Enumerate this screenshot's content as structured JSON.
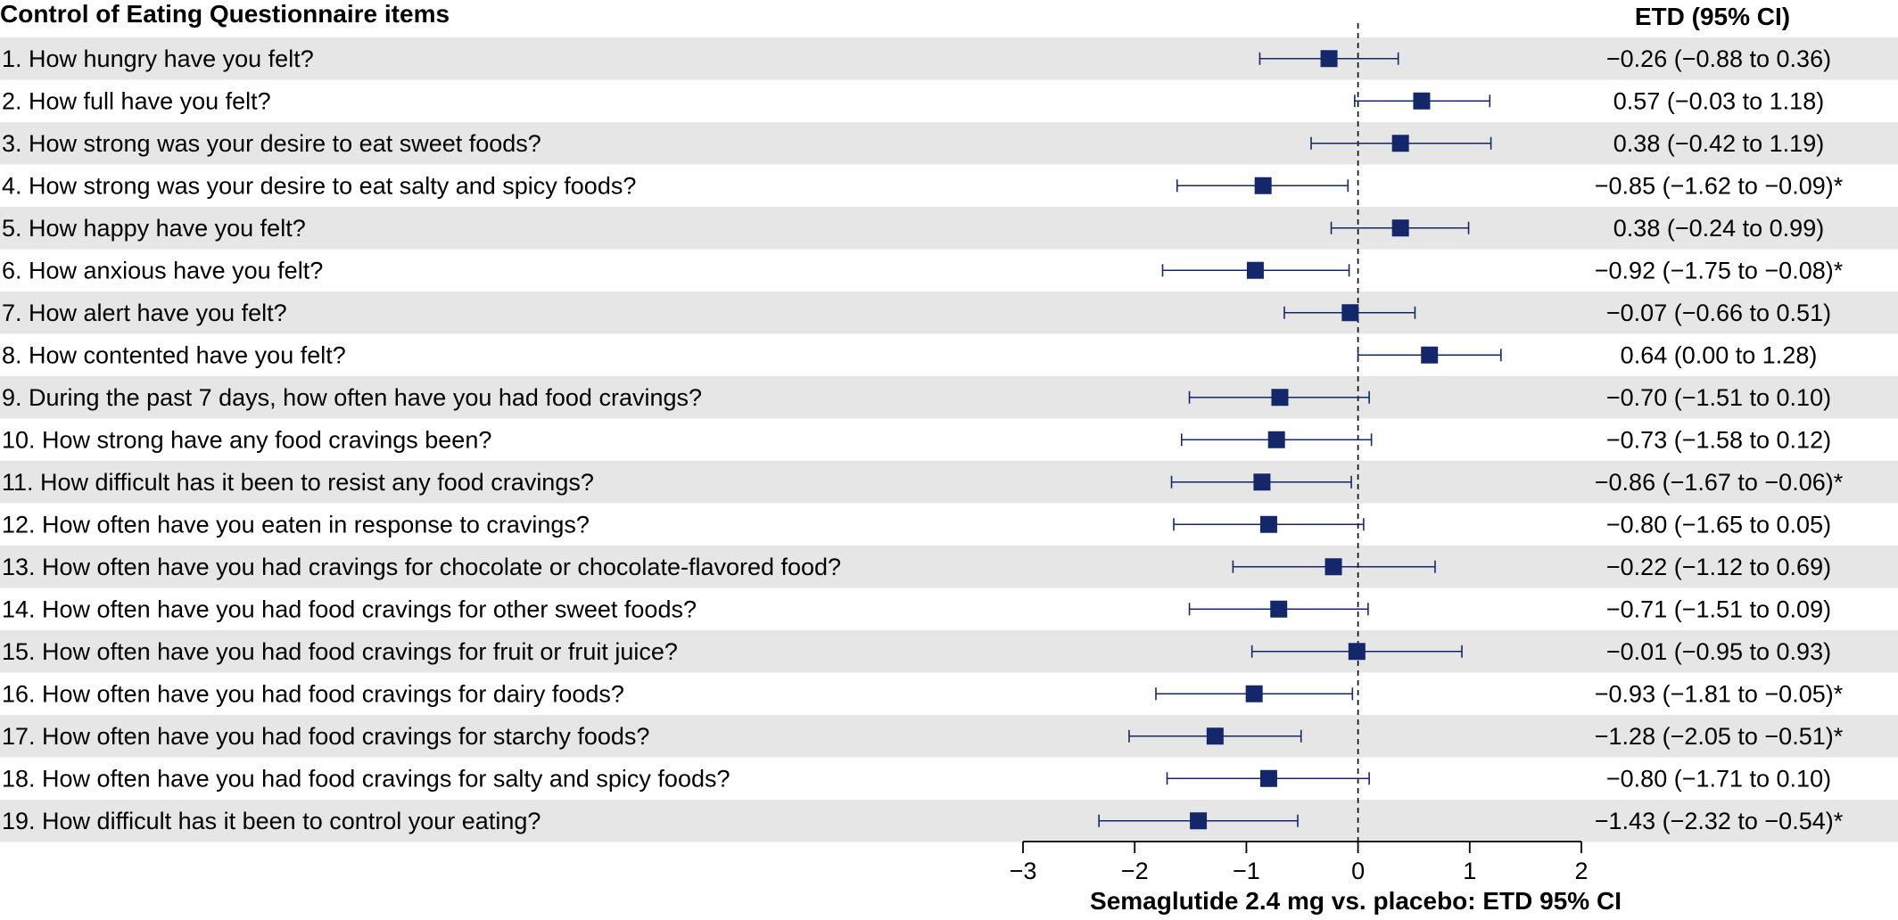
{
  "chart_data": {
    "type": "forest",
    "title": "",
    "row_header": "Control of Eating Questionnaire items",
    "etd_header": "ETD (95% CI)",
    "xlabel": "Semaglutide 2.4 mg vs. placebo: ETD 95% CI",
    "xlim": [
      -3,
      2
    ],
    "x_ticks": [
      -3,
      -2,
      -1,
      0,
      1,
      2
    ],
    "x_tick_labels": [
      "−3",
      "−2",
      "−1",
      "0",
      "1",
      "2"
    ],
    "reference_line": 0,
    "marker_color": "#14276b",
    "stripe_color": "#e6e6e6",
    "rows": [
      {
        "label": "1. How hungry have you felt?",
        "etd": -0.26,
        "lower": -0.88,
        "upper": 0.36,
        "text": "−0.26 (−0.88 to 0.36)"
      },
      {
        "label": "2. How full have you felt?",
        "etd": 0.57,
        "lower": -0.03,
        "upper": 1.18,
        "text": "0.57 (−0.03 to 1.18)"
      },
      {
        "label": "3. How strong was your desire to eat sweet foods?",
        "etd": 0.38,
        "lower": -0.42,
        "upper": 1.19,
        "text": "0.38 (−0.42 to 1.19)"
      },
      {
        "label": "4. How strong was your desire to eat salty and spicy foods?",
        "etd": -0.85,
        "lower": -1.62,
        "upper": -0.09,
        "text": "−0.85 (−1.62 to −0.09)*"
      },
      {
        "label": "5. How happy have you felt?",
        "etd": 0.38,
        "lower": -0.24,
        "upper": 0.99,
        "text": "0.38 (−0.24 to 0.99)"
      },
      {
        "label": "6. How anxious have you felt?",
        "etd": -0.92,
        "lower": -1.75,
        "upper": -0.08,
        "text": "−0.92 (−1.75 to −0.08)*"
      },
      {
        "label": "7. How alert have you felt?",
        "etd": -0.07,
        "lower": -0.66,
        "upper": 0.51,
        "text": "−0.07 (−0.66 to 0.51)"
      },
      {
        "label": "8. How contented have you felt?",
        "etd": 0.64,
        "lower": 0.0,
        "upper": 1.28,
        "text": "0.64 (0.00 to 1.28)"
      },
      {
        "label": "9. During the past 7 days, how often have you had food cravings?",
        "etd": -0.7,
        "lower": -1.51,
        "upper": 0.1,
        "text": "−0.70 (−1.51 to 0.10)"
      },
      {
        "label": "10. How strong have any food cravings been?",
        "etd": -0.73,
        "lower": -1.58,
        "upper": 0.12,
        "text": "−0.73 (−1.58 to 0.12)"
      },
      {
        "label": "11. How difficult has it been to resist any food cravings?",
        "etd": -0.86,
        "lower": -1.67,
        "upper": -0.06,
        "text": "−0.86 (−1.67 to −0.06)*"
      },
      {
        "label": "12. How often have you eaten in response to cravings?",
        "etd": -0.8,
        "lower": -1.65,
        "upper": 0.05,
        "text": "−0.80 (−1.65 to 0.05)"
      },
      {
        "label": "13. How often have you had cravings for chocolate or chocolate-flavored food?",
        "etd": -0.22,
        "lower": -1.12,
        "upper": 0.69,
        "text": "−0.22 (−1.12 to 0.69)"
      },
      {
        "label": "14. How often have you had food cravings for other sweet foods?",
        "etd": -0.71,
        "lower": -1.51,
        "upper": 0.09,
        "text": "−0.71 (−1.51 to 0.09)"
      },
      {
        "label": "15. How often have you had food cravings for fruit or fruit juice?",
        "etd": -0.01,
        "lower": -0.95,
        "upper": 0.93,
        "text": "−0.01 (−0.95 to 0.93)"
      },
      {
        "label": "16. How often have you had food cravings for dairy foods?",
        "etd": -0.93,
        "lower": -1.81,
        "upper": -0.05,
        "text": "−0.93 (−1.81 to −0.05)*"
      },
      {
        "label": "17. How often have you had food cravings for starchy foods?",
        "etd": -1.28,
        "lower": -2.05,
        "upper": -0.51,
        "text": "−1.28 (−2.05 to −0.51)*"
      },
      {
        "label": "18. How often have you had food cravings for salty and spicy foods?",
        "etd": -0.8,
        "lower": -1.71,
        "upper": 0.1,
        "text": "−0.80 (−1.71 to 0.10)"
      },
      {
        "label": "19. How difficult has it been to control your eating?",
        "etd": -1.43,
        "lower": -2.32,
        "upper": -0.54,
        "text": "−1.43 (−2.32 to −0.54)*"
      }
    ]
  }
}
